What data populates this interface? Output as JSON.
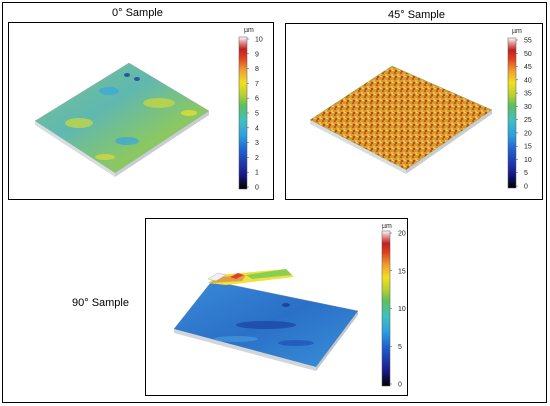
{
  "panels": [
    {
      "id": "p0",
      "caption": "0° Sample",
      "unit": "µm",
      "ticks": [
        "10",
        "9",
        "8",
        "7",
        "6",
        "5",
        "4",
        "3",
        "2",
        "1",
        "0"
      ]
    },
    {
      "id": "p45",
      "caption": "45° Sample",
      "unit": "µm",
      "ticks": [
        "55",
        "50",
        "45",
        "40",
        "35",
        "30",
        "25",
        "20",
        "15",
        "10",
        "5",
        "0"
      ]
    },
    {
      "id": "p90",
      "caption": "90° Sample",
      "unit": "µm",
      "ticks": [
        "20",
        "15",
        "10",
        "5",
        "0"
      ]
    }
  ],
  "colormap": [
    "#000000",
    "#1a1a8c",
    "#1e5fd0",
    "#2aa0e0",
    "#40c0c0",
    "#5cc05c",
    "#b8d030",
    "#f0e020",
    "#f0a030",
    "#e04020",
    "#c02020",
    "#e8a0a0",
    "#ffffff"
  ]
}
